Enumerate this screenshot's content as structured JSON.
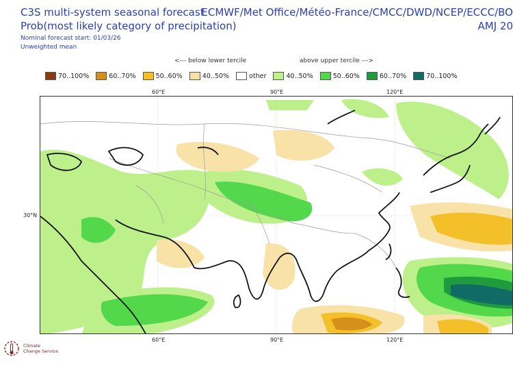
{
  "header": {
    "title_line1": "C3S multi-system seasonal forecast",
    "title_line2": "Prob(most likely category of precipitation)",
    "nominal_start": "Nominal forecast start: 01/03/26",
    "weighting": "Unweighted mean",
    "providers": "ECMWF/Met Office/Météo-France/CMCC/DWD/NCEP/ECCC/BO",
    "season": "AMJ 20"
  },
  "tercile_labels": {
    "below": "<--- below lower tercile",
    "above": "above upper tercile --->"
  },
  "legend": [
    {
      "label": "70..100%",
      "color": "#8b3a0f"
    },
    {
      "label": "60..70%",
      "color": "#d4901a"
    },
    {
      "label": "50..60%",
      "color": "#f4c02a"
    },
    {
      "label": "40..50%",
      "color": "#f8e2a8"
    },
    {
      "label": "other",
      "color": "#ffffff"
    },
    {
      "label": "40..50%",
      "color": "#bdf08a"
    },
    {
      "label": "50..60%",
      "color": "#52d84a"
    },
    {
      "label": "60..70%",
      "color": "#1f9a3c"
    },
    {
      "label": "70..100%",
      "color": "#0f6b63"
    }
  ],
  "axes": {
    "lon_top": [
      "60°E",
      "90°E",
      "120°E"
    ],
    "lon_bottom": [
      "60°E",
      "90°E",
      "120°E"
    ],
    "lat": [
      "30°N"
    ]
  },
  "logo": {
    "line1": "Climate",
    "line2": "Change Service"
  }
}
